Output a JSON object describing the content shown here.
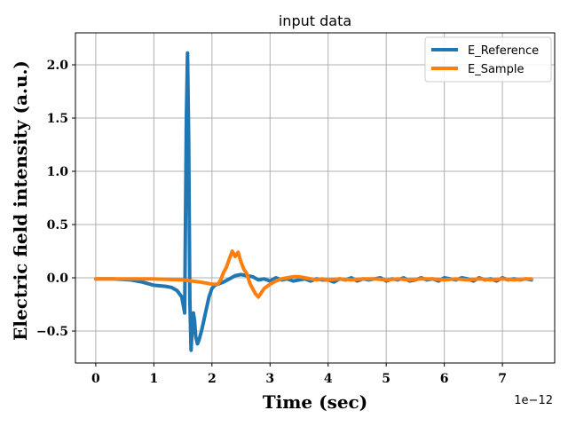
{
  "chart_data": {
    "type": "line",
    "title": "input data",
    "xlabel": "Time (sec)",
    "ylabel": "Electric field intensity (a.u.)",
    "x_offset_label": "1e−12",
    "xlim": [
      -0.35,
      7.9
    ],
    "ylim": [
      -0.8,
      2.3
    ],
    "x_ticks": [
      0,
      1,
      2,
      3,
      4,
      5,
      6,
      7
    ],
    "x_tick_labels": [
      "0",
      "1",
      "2",
      "3",
      "4",
      "5",
      "6",
      "7"
    ],
    "y_ticks": [
      -0.5,
      0.0,
      0.5,
      1.0,
      1.5,
      2.0
    ],
    "y_tick_labels": [
      "−0.5",
      "0.0",
      "0.5",
      "1.0",
      "1.5",
      "2.0"
    ],
    "grid": true,
    "legend_position": "top-right",
    "series": [
      {
        "name": "E_Reference",
        "color": "#1f77b4",
        "x": [
          0,
          0.3,
          0.6,
          0.8,
          1.0,
          1.2,
          1.3,
          1.4,
          1.48,
          1.53,
          1.56,
          1.58,
          1.6,
          1.62,
          1.64,
          1.66,
          1.68,
          1.7,
          1.72,
          1.75,
          1.78,
          1.82,
          1.86,
          1.9,
          1.95,
          2.0,
          2.05,
          2.1,
          2.2,
          2.3,
          2.4,
          2.5,
          2.6,
          2.7,
          2.8,
          2.9,
          3.0,
          3.1,
          3.2,
          3.3,
          3.4,
          3.5,
          3.6,
          3.7,
          3.8,
          3.9,
          4.0,
          4.1,
          4.2,
          4.3,
          4.4,
          4.5,
          4.6,
          4.7,
          4.8,
          4.9,
          5.0,
          5.1,
          5.2,
          5.3,
          5.4,
          5.5,
          5.6,
          5.7,
          5.8,
          5.9,
          6.0,
          6.1,
          6.2,
          6.3,
          6.4,
          6.5,
          6.6,
          6.7,
          6.8,
          6.9,
          7.0,
          7.1,
          7.2,
          7.3,
          7.4,
          7.5
        ],
        "y": [
          -0.01,
          -0.01,
          -0.02,
          -0.04,
          -0.07,
          -0.08,
          -0.09,
          -0.12,
          -0.18,
          -0.33,
          1.5,
          2.11,
          1.3,
          -0.2,
          -0.68,
          -0.45,
          -0.33,
          -0.4,
          -0.55,
          -0.62,
          -0.58,
          -0.5,
          -0.4,
          -0.3,
          -0.18,
          -0.1,
          -0.07,
          -0.06,
          -0.04,
          -0.01,
          0.02,
          0.03,
          0.02,
          0.01,
          -0.02,
          -0.01,
          -0.03,
          0.0,
          -0.02,
          -0.01,
          -0.03,
          -0.02,
          -0.01,
          -0.03,
          -0.01,
          -0.02,
          -0.02,
          -0.04,
          -0.01,
          -0.02,
          0.0,
          -0.03,
          -0.01,
          -0.02,
          -0.01,
          0.0,
          -0.03,
          -0.01,
          -0.02,
          0.0,
          -0.03,
          -0.02,
          0.0,
          -0.02,
          -0.01,
          -0.03,
          0.0,
          -0.01,
          -0.02,
          0.0,
          -0.01,
          -0.03,
          0.0,
          -0.02,
          -0.01,
          -0.03,
          0.0,
          -0.02,
          -0.01,
          -0.02,
          -0.01,
          -0.02
        ]
      },
      {
        "name": "E_Sample",
        "color": "#ff7f0e",
        "x": [
          0,
          0.5,
          1.0,
          1.5,
          1.8,
          2.0,
          2.1,
          2.15,
          2.2,
          2.25,
          2.3,
          2.35,
          2.4,
          2.45,
          2.5,
          2.55,
          2.6,
          2.65,
          2.7,
          2.75,
          2.8,
          2.85,
          2.9,
          3.0,
          3.1,
          3.2,
          3.3,
          3.4,
          3.5,
          3.6,
          3.7,
          3.8,
          3.9,
          4.0,
          4.2,
          4.4,
          4.6,
          4.8,
          5.0,
          5.2,
          5.4,
          5.6,
          5.8,
          6.0,
          6.2,
          6.4,
          6.6,
          6.8,
          7.0,
          7.2,
          7.4,
          7.5
        ],
        "y": [
          -0.01,
          -0.01,
          -0.01,
          -0.02,
          -0.04,
          -0.06,
          -0.06,
          -0.02,
          0.05,
          0.1,
          0.18,
          0.25,
          0.2,
          0.24,
          0.15,
          0.08,
          0.04,
          -0.05,
          -0.1,
          -0.15,
          -0.18,
          -0.14,
          -0.1,
          -0.06,
          -0.03,
          -0.01,
          0.0,
          0.01,
          0.01,
          0.0,
          -0.01,
          -0.02,
          -0.01,
          -0.02,
          -0.01,
          -0.02,
          -0.01,
          -0.01,
          -0.02,
          -0.01,
          -0.02,
          -0.01,
          -0.01,
          -0.02,
          -0.01,
          -0.02,
          -0.01,
          -0.02,
          -0.01,
          -0.02,
          -0.01,
          -0.01
        ]
      }
    ]
  }
}
